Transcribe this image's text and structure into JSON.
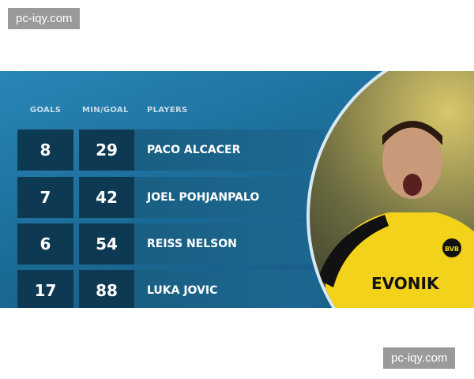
{
  "watermark": "pc-iqy.com",
  "headers": {
    "goals": "GOALS",
    "min_goal": "MIN/GOAL",
    "players": "PLAYERS"
  },
  "rows": [
    {
      "goals": "8",
      "min_goal": "29",
      "player": "PACO ALCACER"
    },
    {
      "goals": "7",
      "min_goal": "42",
      "player": "JOEL POHJANPALO"
    },
    {
      "goals": "6",
      "min_goal": "54",
      "player": "REISS NELSON"
    },
    {
      "goals": "17",
      "min_goal": "88",
      "player": "LUKA JOVIC"
    }
  ],
  "photo": {
    "sponsor": "EVONIK",
    "badge": "BVB"
  }
}
